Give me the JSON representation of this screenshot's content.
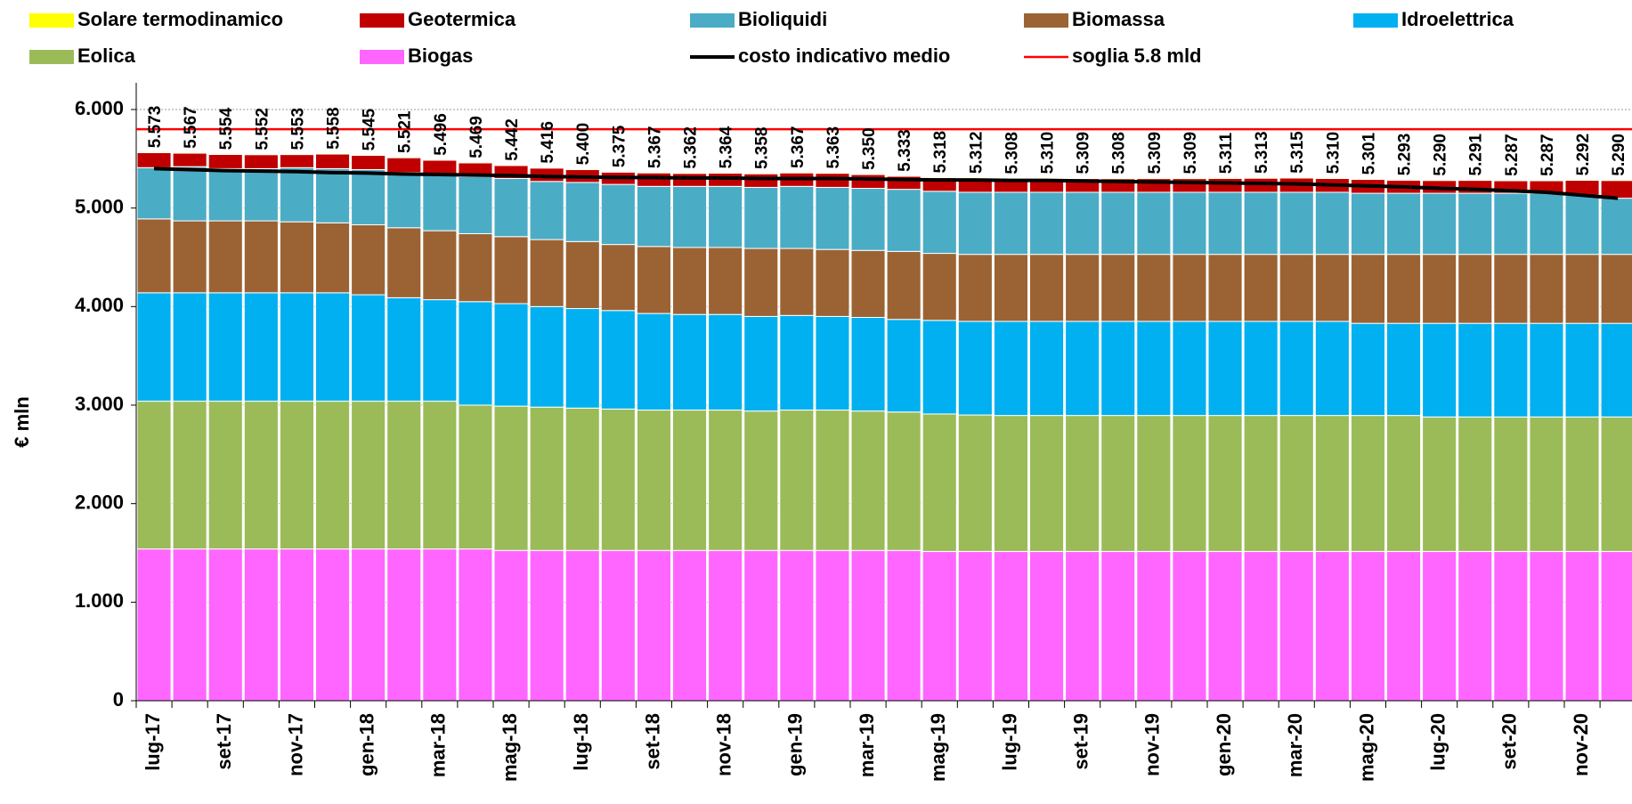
{
  "chart_data": {
    "type": "stacked-bar",
    "y_label": "€ mln",
    "categories": [
      "lug-17",
      null,
      "set-17",
      null,
      "nov-17",
      null,
      "gen-18",
      null,
      "mar-18",
      null,
      "mag-18",
      null,
      "lug-18",
      null,
      "set-18",
      null,
      "nov-18",
      null,
      "gen-19",
      null,
      "mar-19",
      null,
      "mag-19",
      null,
      "lug-19",
      null,
      "set-19",
      null,
      "nov-19",
      null,
      "gen-20",
      null,
      "mar-20",
      null,
      "mag-20",
      null,
      "lug-20",
      null,
      "set-20",
      null,
      "nov-20",
      null
    ],
    "ylim": [
      0,
      6000
    ],
    "yticks": [
      0,
      {
        "value": 1000,
        "label": "1.000"
      },
      {
        "value": 2000,
        "label": "2.000"
      },
      {
        "value": 3000,
        "label": "3.000"
      },
      {
        "value": 4000,
        "label": "4.000"
      },
      {
        "value": 5000,
        "label": "5.000"
      },
      {
        "value": 6000,
        "label": "6.000"
      }
    ],
    "grid": true,
    "series": [
      {
        "name": "Solare termodinamico",
        "color": "#ffff00",
        "values": [
          10,
          10,
          10,
          10,
          10,
          10,
          10,
          10,
          10,
          10,
          10,
          10,
          10,
          10,
          10,
          10,
          10,
          10,
          10,
          10,
          10,
          10,
          10,
          10,
          10,
          10,
          10,
          10,
          10,
          10,
          10,
          10,
          10,
          10,
          10,
          10,
          10,
          10,
          10,
          10,
          10,
          10
        ]
      },
      {
        "name": "Geotermica",
        "color": "#c00000",
        "values": [
          153,
          137,
          144,
          142,
          133,
          148,
          145,
          151,
          146,
          139,
          132,
          136,
          130,
          125,
          137,
          132,
          134,
          138,
          137,
          143,
          140,
          133,
          138,
          142,
          138,
          140,
          139,
          138,
          139,
          139,
          141,
          143,
          145,
          140,
          141,
          133,
          130,
          131,
          127,
          127,
          152,
          180
        ]
      },
      {
        "name": "Bioliquidi",
        "color": "#4bacc6",
        "values": [
          520,
          550,
          530,
          530,
          550,
          550,
          560,
          560,
          570,
          580,
          590,
          590,
          600,
          610,
          610,
          620,
          620,
          620,
          630,
          630,
          630,
          630,
          630,
          630,
          630,
          630,
          630,
          630,
          630,
          630,
          630,
          630,
          630,
          630,
          620,
          620,
          620,
          620,
          620,
          620,
          600,
          570
        ]
      },
      {
        "name": "Biomassa",
        "color": "#9b6334",
        "values": [
          750,
          730,
          730,
          730,
          720,
          710,
          710,
          710,
          700,
          690,
          680,
          680,
          680,
          670,
          680,
          680,
          680,
          690,
          680,
          680,
          680,
          690,
          680,
          680,
          680,
          680,
          680,
          680,
          680,
          680,
          680,
          680,
          680,
          680,
          700,
          700,
          700,
          700,
          700,
          700,
          700,
          700
        ]
      },
      {
        "name": "Idroelettrica",
        "color": "#00b0f0",
        "values": [
          1100,
          1100,
          1100,
          1100,
          1100,
          1100,
          1080,
          1050,
          1030,
          1050,
          1040,
          1020,
          1010,
          1000,
          980,
          970,
          970,
          960,
          960,
          950,
          950,
          940,
          950,
          950,
          955,
          955,
          955,
          955,
          955,
          955,
          955,
          955,
          955,
          955,
          935,
          935,
          950,
          950,
          950,
          950,
          950,
          950
        ]
      },
      {
        "name": "Eolica",
        "color": "#9bbb59",
        "values": [
          1500,
          1500,
          1500,
          1500,
          1500,
          1500,
          1500,
          1500,
          1500,
          1460,
          1465,
          1455,
          1445,
          1435,
          1425,
          1425,
          1425,
          1415,
          1425,
          1425,
          1415,
          1405,
          1395,
          1385,
          1380,
          1380,
          1380,
          1380,
          1380,
          1380,
          1380,
          1380,
          1380,
          1380,
          1380,
          1380,
          1365,
          1365,
          1365,
          1365,
          1365,
          1365
        ]
      },
      {
        "name": "Biogas",
        "color": "#ff66ff",
        "values": [
          1540,
          1540,
          1540,
          1540,
          1540,
          1540,
          1540,
          1540,
          1540,
          1540,
          1525,
          1525,
          1525,
          1525,
          1525,
          1525,
          1525,
          1525,
          1525,
          1525,
          1525,
          1525,
          1515,
          1515,
          1515,
          1515,
          1515,
          1515,
          1515,
          1515,
          1515,
          1515,
          1515,
          1515,
          1515,
          1515,
          1515,
          1515,
          1515,
          1515,
          1515,
          1515
        ]
      },
      {
        "name": "costo indicativo medio",
        "color": "#000000",
        "type": "line",
        "values": [
          5400,
          5390,
          5380,
          5375,
          5370,
          5360,
          5355,
          5345,
          5340,
          5335,
          5330,
          5320,
          5315,
          5310,
          5310,
          5305,
          5305,
          5300,
          5300,
          5300,
          5295,
          5290,
          5285,
          5285,
          5280,
          5280,
          5275,
          5270,
          5265,
          5260,
          5255,
          5250,
          5245,
          5235,
          5225,
          5215,
          5200,
          5190,
          5175,
          5160,
          5130,
          5100
        ]
      }
    ],
    "threshold": {
      "name": "soglia 5.8 mld",
      "color": "#ff0000",
      "value": 5800
    },
    "totals": {
      "values": [
        5573,
        5567,
        5554,
        5552,
        5553,
        5558,
        5545,
        5521,
        5496,
        5469,
        5442,
        5416,
        5400,
        5375,
        5367,
        5362,
        5364,
        5358,
        5367,
        5363,
        5350,
        5333,
        5318,
        5312,
        5308,
        5310,
        5309,
        5308,
        5309,
        5309,
        5311,
        5313,
        5315,
        5310,
        5301,
        5293,
        5290,
        5291,
        5287,
        5287,
        5292,
        5290
      ],
      "value_labels": [
        "5.573",
        "5.567",
        "5.554",
        "5.552",
        "5.553",
        "5.558",
        "5.545",
        "5.521",
        "5.496",
        "5.469",
        "5.442",
        "5.416",
        "5.400",
        "5.375",
        "5.367",
        "5.362",
        "5.364",
        "5.358",
        "5.367",
        "5.363",
        "5.350",
        "5.333",
        "5.318",
        "5.312",
        "5.308",
        "5.310",
        "5.309",
        "5.308",
        "5.309",
        "5.309",
        "5.311",
        "5.313",
        "5.315",
        "5.310",
        "5.301",
        "5.293",
        "5.290",
        "5.291",
        "5.287",
        "5.287",
        "5.292",
        "5.290"
      ]
    }
  }
}
